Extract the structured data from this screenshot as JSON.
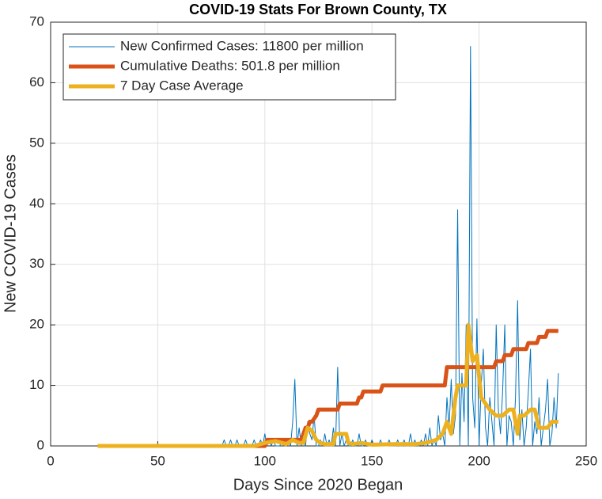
{
  "chart_data": {
    "type": "line",
    "title": "COVID-19 Stats For Brown County, TX",
    "xlabel": "Days Since 2020 Began",
    "ylabel": "New COVID-19 Cases",
    "xlim": [
      0,
      250
    ],
    "xticks": [
      0,
      50,
      100,
      150,
      200,
      250
    ],
    "ylim": [
      0,
      70
    ],
    "yticks": [
      0,
      10,
      20,
      30,
      40,
      50,
      60,
      70
    ],
    "grid": true,
    "legend": "upper left",
    "series": [
      {
        "name": "New Confirmed Cases: 11800 per million",
        "color": "#0072bd",
        "width": 1,
        "x": [
          22,
          79,
          80,
          81,
          82,
          83,
          84,
          85,
          86,
          87,
          88,
          89,
          90,
          91,
          92,
          93,
          94,
          95,
          96,
          97,
          98,
          99,
          100,
          101,
          102,
          103,
          104,
          105,
          106,
          107,
          108,
          109,
          110,
          111,
          112,
          113,
          114,
          115,
          116,
          117,
          118,
          119,
          120,
          121,
          122,
          123,
          124,
          125,
          126,
          127,
          128,
          129,
          130,
          131,
          132,
          133,
          134,
          135,
          136,
          137,
          138,
          139,
          140,
          141,
          142,
          143,
          144,
          145,
          146,
          147,
          148,
          149,
          150,
          151,
          152,
          153,
          154,
          155,
          156,
          157,
          158,
          159,
          160,
          161,
          162,
          163,
          164,
          165,
          166,
          167,
          168,
          169,
          170,
          171,
          172,
          173,
          174,
          175,
          176,
          177,
          178,
          179,
          180,
          181,
          182,
          183,
          184,
          185,
          186,
          187,
          188,
          189,
          190,
          191,
          192,
          193,
          194,
          195,
          196,
          197,
          198,
          199,
          200,
          201,
          202,
          203,
          204,
          205,
          206,
          207,
          208,
          209,
          210,
          211,
          212,
          213,
          214,
          215,
          216,
          217,
          218,
          219,
          220,
          221,
          222,
          223,
          224,
          225,
          226,
          227,
          228,
          229,
          230,
          231,
          232,
          233,
          234,
          235,
          236,
          237
        ],
        "values": [
          0,
          0,
          0,
          1,
          0,
          0,
          1,
          0,
          0,
          1,
          0,
          0,
          0,
          1,
          0,
          0,
          0,
          1,
          0,
          0,
          1,
          0,
          2,
          0,
          1,
          0,
          1,
          0,
          0,
          0,
          1,
          0,
          0,
          1,
          0,
          4,
          11,
          0,
          3,
          0,
          1,
          0,
          4,
          2,
          1,
          5,
          0,
          0,
          1,
          0,
          2,
          0,
          1,
          0,
          3,
          0,
          13,
          0,
          2,
          0,
          1,
          0,
          0,
          1,
          0,
          0,
          2,
          0,
          0,
          1,
          0,
          0,
          1,
          0,
          0,
          0,
          1,
          0,
          0,
          0,
          1,
          0,
          0,
          0,
          1,
          0,
          0,
          1,
          0,
          0,
          2,
          0,
          1,
          0,
          0,
          1,
          0,
          2,
          0,
          3,
          0,
          1,
          0,
          5,
          1,
          2,
          0,
          8,
          3,
          11,
          2,
          5,
          39,
          0,
          12,
          4,
          20,
          0,
          66,
          8,
          3,
          21,
          0,
          10,
          16,
          3,
          0,
          8,
          4,
          0,
          20,
          6,
          2,
          9,
          20,
          0,
          5,
          4,
          0,
          8,
          24,
          1,
          6,
          0,
          3,
          9,
          16,
          0,
          4,
          2,
          8,
          0,
          3,
          6,
          11,
          0,
          2,
          8,
          3,
          12
        ]
      },
      {
        "name": "Cumulative Deaths: 501.8 per million",
        "color": "#d95319",
        "width": 5,
        "x": [
          22,
          100,
          101,
          115,
          116,
          117,
          118,
          119,
          120,
          121,
          122,
          124,
          125,
          134,
          135,
          143,
          144,
          145,
          146,
          153,
          154,
          155,
          184,
          185,
          206,
          207,
          208,
          211,
          212,
          215,
          216,
          221,
          222,
          223,
          227,
          228,
          231,
          232,
          237
        ],
        "values": [
          0,
          0,
          1,
          1,
          1,
          1,
          2,
          3,
          3,
          4,
          4,
          5,
          6,
          6,
          7,
          7,
          8,
          8,
          9,
          9,
          9,
          10,
          10,
          13,
          13,
          13,
          14,
          14,
          15,
          15,
          16,
          16,
          16,
          17,
          17,
          18,
          18,
          19,
          19
        ]
      },
      {
        "name": "7 Day Case Average",
        "color": "#edb120",
        "width": 5,
        "x": [
          22,
          95,
          100,
          105,
          110,
          113,
          116,
          118,
          120,
          122,
          124,
          126,
          128,
          130,
          132,
          133,
          138,
          139,
          141,
          145,
          150,
          160,
          170,
          175,
          180,
          183,
          185,
          187,
          189,
          190,
          192,
          194,
          195,
          197,
          199,
          201,
          203,
          205,
          208,
          211,
          214,
          216,
          218,
          219,
          221,
          224,
          226,
          228,
          230,
          232,
          234,
          237
        ],
        "values": [
          0,
          0,
          0.5,
          0.8,
          0.3,
          1,
          0.5,
          0.5,
          3,
          2.5,
          1,
          0.5,
          0.3,
          0.3,
          0.3,
          2,
          2,
          0.5,
          0.3,
          0.5,
          0.2,
          0.3,
          0.3,
          0.5,
          1,
          2,
          4,
          2,
          8,
          10,
          10,
          10,
          20,
          14,
          15,
          8,
          7,
          6,
          5,
          5,
          6,
          6,
          2,
          5,
          5,
          6,
          6,
          3,
          3,
          3,
          4,
          4
        ]
      }
    ]
  }
}
